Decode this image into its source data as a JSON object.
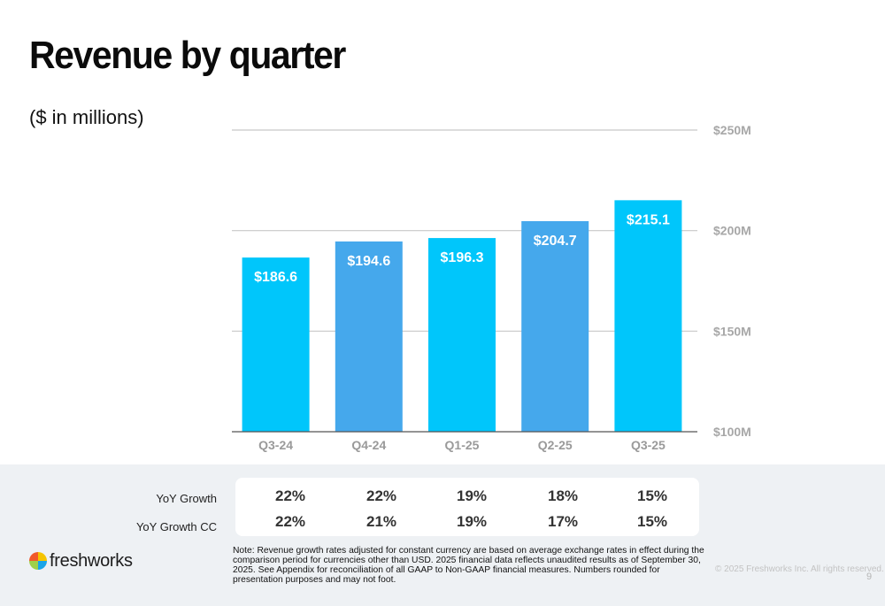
{
  "slide": {
    "title": "Revenue by quarter",
    "subtitle": "($ in millions)",
    "page_number": "9",
    "copyright": "© 2025 Freshworks Inc. All rights reserved.",
    "brand": "freshworks",
    "note": "Note: Revenue growth rates adjusted for constant currency are based on average exchange rates in effect during the comparison period for currencies other than USD. 2025 financial data reflects unaudited results as of September 30, 2025. See Appendix for reconciliation of all GAAP to Non-GAAP financial measures. Numbers rounded for presentation purposes and may not foot."
  },
  "colors": {
    "bar_bright": "#00c6fb",
    "bar_mid": "#45a8ec",
    "grid": "#c8c8c8",
    "axis": "#555555"
  },
  "chart_data": {
    "type": "bar",
    "title": "Revenue by quarter",
    "ylabel": "($ in millions)",
    "categories": [
      "Q3-24",
      "Q4-24",
      "Q1-25",
      "Q2-25",
      "Q3-25"
    ],
    "values": [
      186.6,
      194.6,
      196.3,
      204.7,
      215.1
    ],
    "data_labels": [
      "$186.6",
      "$194.6",
      "$196.3",
      "$204.7",
      "$215.1"
    ],
    "ylim": [
      100,
      250
    ],
    "yticks": [
      100,
      150,
      200,
      250
    ],
    "ytick_labels": [
      "$100M",
      "$150M",
      "$200M",
      "$250M"
    ],
    "y_axis_side": "right",
    "grid": true
  },
  "growth": {
    "rows": [
      {
        "label": "YoY Growth",
        "values": [
          "22%",
          "22%",
          "19%",
          "18%",
          "15%"
        ]
      },
      {
        "label": "YoY Growth CC",
        "values": [
          "22%",
          "21%",
          "19%",
          "17%",
          "15%"
        ]
      }
    ]
  }
}
